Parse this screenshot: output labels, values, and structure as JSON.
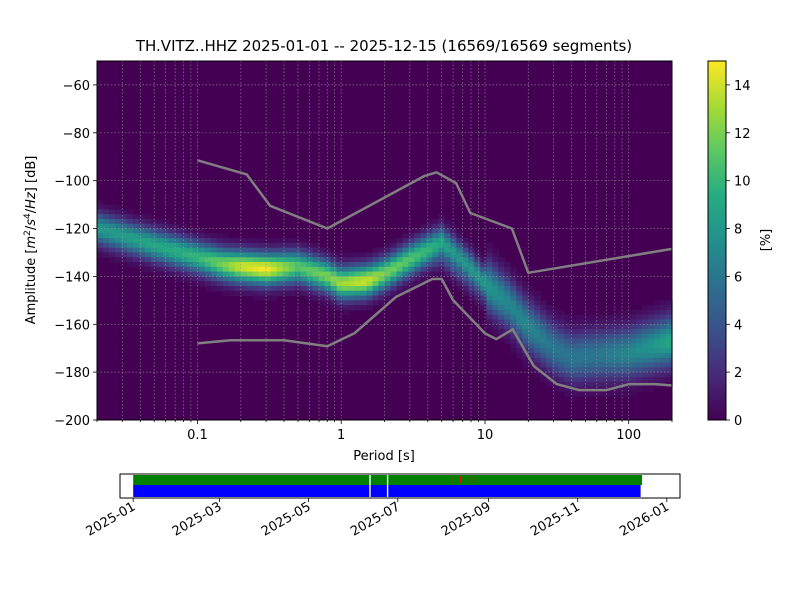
{
  "chart_data": {
    "type": "heatmap",
    "title": "TH.VITZ..HHZ   2025-01-01 -- 2025-12-15  (16569/16569 segments)",
    "xlabel": "Period [s]",
    "ylabel_parts": [
      "Amplitude [",
      "m",
      "2",
      "/",
      "s",
      "4",
      "/",
      "Hz",
      "] [dB]"
    ],
    "xscale": "log",
    "xlim": [
      0.02,
      200
    ],
    "ylim": [
      -200,
      -50
    ],
    "x_ticks": [
      0.1,
      1,
      10,
      100
    ],
    "x_tick_labels": [
      "0.1",
      "1",
      "10",
      "100"
    ],
    "y_ticks": [
      -200,
      -180,
      -160,
      -140,
      -120,
      -100,
      -80,
      -60
    ],
    "y_tick_labels": [
      "−200",
      "−180",
      "−160",
      "−140",
      "−120",
      "−100",
      "−80",
      "−60"
    ],
    "colorbar": {
      "label": "[%]",
      "range": [
        0,
        15
      ],
      "ticks": [
        0,
        2,
        4,
        6,
        8,
        10,
        12,
        14
      ],
      "tick_labels": [
        "0",
        "2",
        "4",
        "6",
        "8",
        "10",
        "12",
        "14"
      ],
      "colormap": "viridis"
    },
    "grid": true,
    "density_ridge": {
      "period": [
        0.02,
        0.05,
        0.1,
        0.15,
        0.2,
        0.3,
        0.5,
        0.8,
        1.0,
        1.5,
        2.0,
        3.0,
        4.0,
        5.0,
        6.0,
        8.0,
        10,
        15,
        20,
        30,
        40,
        60,
        100,
        150,
        200
      ],
      "amplitude_db": [
        -120,
        -127,
        -132,
        -135,
        -136,
        -137,
        -136,
        -140,
        -143,
        -142,
        -139,
        -133,
        -129,
        -126,
        -130,
        -137,
        -143,
        -152,
        -161,
        -170,
        -174,
        -173,
        -172,
        -169,
        -167
      ],
      "peak_percent": [
        8,
        9,
        10,
        12,
        14,
        15,
        11,
        12,
        13,
        14,
        12,
        11,
        10,
        9,
        8,
        8,
        8,
        7,
        7,
        6,
        6,
        6,
        7,
        8,
        9
      ]
    },
    "secondary_branch": {
      "period": [
        1.5,
        2.0,
        3.0,
        4.0,
        5.0,
        6.0,
        8.0,
        10
      ],
      "amplitude_db": [
        -140,
        -137,
        -133,
        -131,
        -130,
        -134,
        -141,
        -147
      ],
      "peak_percent": [
        5,
        6,
        7,
        6,
        5,
        5,
        4,
        3
      ]
    },
    "reference_curves": {
      "color": "#808080",
      "upper": {
        "period": [
          0.1,
          0.22,
          0.32,
          0.8,
          3.8,
          4.6,
          6.3,
          7.9,
          15.4,
          20,
          200
        ],
        "amplitude_db": [
          -91.5,
          -97.4,
          -110.5,
          -120,
          -98,
          -96.5,
          -101,
          -113.5,
          -120,
          -138.5,
          -128.5
        ]
      },
      "lower": {
        "period": [
          0.1,
          0.17,
          0.4,
          0.8,
          1.24,
          2.4,
          4.3,
          5.0,
          6.0,
          10,
          12,
          15.6,
          21.9,
          31.6,
          45,
          70,
          101,
          154,
          200
        ],
        "amplitude_db": [
          -168,
          -166.7,
          -166.7,
          -169.2,
          -163.7,
          -148.6,
          -141.1,
          -141.1,
          -149.9,
          -163.8,
          -166.2,
          -162.1,
          -177.5,
          -185,
          -187.5,
          -187.5,
          -185,
          -185,
          -185.6
        ]
      }
    }
  },
  "coverage": {
    "axis_ticks": [
      "2025-01",
      "2025-03",
      "2025-05",
      "2025-07",
      "2025-09",
      "2025-11",
      "2026-01"
    ],
    "range": [
      "2024-12-23",
      "2026-01-10"
    ],
    "data_span": [
      "2025-01-01",
      "2025-12-15"
    ],
    "psd_span": [
      "2025-01-01",
      "2025-12-14"
    ],
    "gaps": [
      "2025-06-12",
      "2025-06-24"
    ],
    "overlaps": [
      "2025-08-08",
      "2025-08-13",
      "2025-08-19",
      "2025-08-23"
    ],
    "colors": {
      "data": "#008000",
      "psd": "#0000ff",
      "gap": "#ffffff",
      "overlap": "#ff0000"
    }
  }
}
